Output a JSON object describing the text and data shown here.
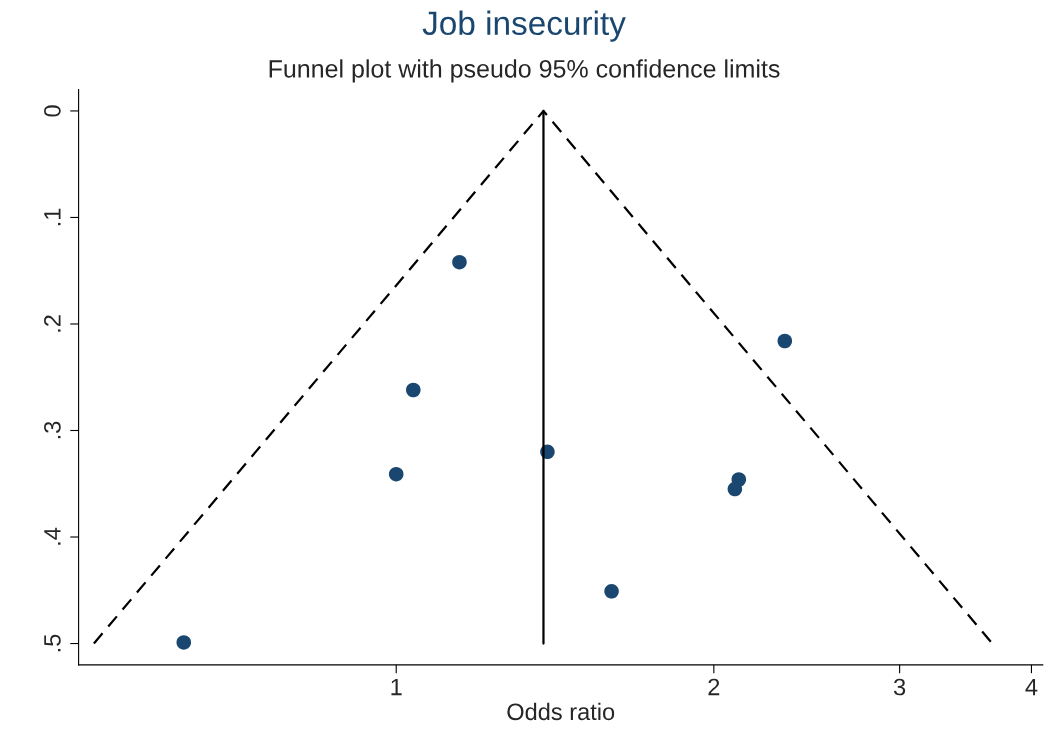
{
  "chart_data": {
    "type": "scatter",
    "title": "Job insecurity",
    "subtitle": "Funnel plot with pseudo 95% confidence limits",
    "xlabel": "Odds ratio",
    "log": "x",
    "grid": false,
    "xlim": [
      0.5,
      4.1
    ],
    "xticks": [
      1,
      2,
      3,
      4
    ],
    "ylim": [
      0.52,
      -0.02
    ],
    "yticks": [
      {
        "value": 0,
        "label": "0"
      },
      {
        "value": 0.1,
        "label": ".1"
      },
      {
        "value": 0.2,
        "label": ".2"
      },
      {
        "value": 0.3,
        "label": ".3"
      },
      {
        "value": 0.4,
        "label": ".4"
      },
      {
        "value": 0.5,
        "label": ".5"
      }
    ],
    "series": [
      {
        "type": "line",
        "color": "#000000",
        "line_style": "dashed",
        "marker": "none",
        "x": [
          0.517,
          1.379,
          3.672
        ],
        "values": [
          0.5,
          0,
          0.5
        ]
      },
      {
        "type": "line",
        "color": "#000000",
        "line_style": "solid",
        "marker": "none",
        "x": [
          1.379,
          1.379
        ],
        "values": [
          0,
          0.5
        ]
      },
      {
        "color": "#1a476f",
        "marker": "circle",
        "x": [
          1.148,
          2.335,
          1.038,
          1.391,
          1.0,
          2.112,
          2.094,
          1.6,
          0.629
        ],
        "values": [
          0.142,
          0.216,
          0.262,
          0.32,
          0.341,
          0.346,
          0.355,
          0.451,
          0.499
        ]
      }
    ]
  }
}
